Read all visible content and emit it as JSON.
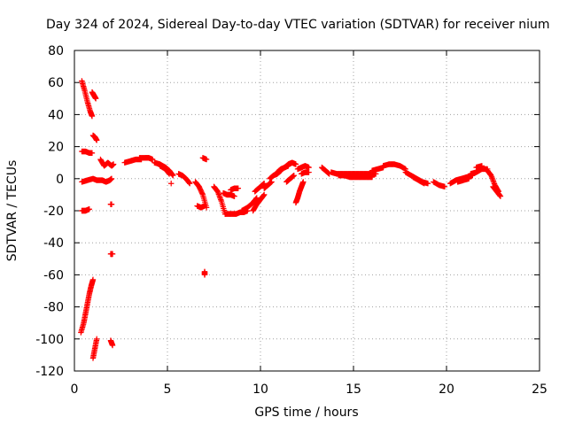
{
  "chart_data": {
    "type": "scatter",
    "title": "Day 324 of 2024, Sidereal Day-to-day VTEC variation (SDTVAR) for receiver nium",
    "xlabel": "GPS time / hours",
    "ylabel": "SDTVAR / TECUs",
    "xlim": [
      0,
      25
    ],
    "ylim": [
      -120,
      80
    ],
    "xticks": [
      0,
      5,
      10,
      15,
      20,
      25
    ],
    "yticks": [
      -120,
      -100,
      -80,
      -60,
      -40,
      -20,
      0,
      20,
      40,
      60,
      80
    ],
    "grid": true,
    "marker": "+",
    "color": "#ff0000",
    "tracks": [
      {
        "x": [
          0.4,
          0.55,
          0.7,
          0.85,
          0.95
        ],
        "y": [
          61,
          55,
          48,
          42,
          39
        ]
      },
      {
        "x": [
          0.95,
          1.05,
          1.15
        ],
        "y": [
          54,
          52,
          50
        ]
      },
      {
        "x": [
          1.0,
          1.1,
          1.2
        ],
        "y": [
          27,
          26,
          24
        ]
      },
      {
        "x": [
          0.4,
          0.6,
          0.8,
          0.95
        ],
        "y": [
          17,
          17,
          16,
          16
        ]
      },
      {
        "x": [
          0.4,
          0.7,
          1.0,
          1.2,
          1.5,
          1.7,
          1.9,
          2.0
        ],
        "y": [
          -2,
          -1,
          0,
          -1,
          -1,
          -2,
          -1,
          0
        ]
      },
      {
        "x": [
          1.4,
          1.6,
          1.8,
          2.0,
          2.1
        ],
        "y": [
          12,
          8,
          10,
          8,
          9
        ]
      },
      {
        "x": [
          0.4,
          0.6,
          0.8
        ],
        "y": [
          -20,
          -20,
          -19
        ]
      },
      {
        "x": [
          1.95,
          2.0
        ],
        "y": [
          -16,
          -16
        ]
      },
      {
        "x": [
          0.35,
          0.5,
          0.6,
          0.7,
          0.8,
          0.9,
          1.0
        ],
        "y": [
          -96,
          -90,
          -84,
          -78,
          -72,
          -67,
          -63
        ]
      },
      {
        "x": [
          1.0,
          1.1,
          1.2
        ],
        "y": [
          -112,
          -106,
          -100
        ]
      },
      {
        "x": [
          1.95,
          2.05
        ],
        "y": [
          -101,
          -104
        ]
      },
      {
        "x": [
          1.95,
          2.05
        ],
        "y": [
          -47,
          -47
        ]
      },
      {
        "x": [
          2.7,
          3.0,
          3.3,
          3.6
        ],
        "y": [
          10,
          11,
          12,
          12
        ]
      },
      {
        "x": [
          3.5,
          3.8,
          4.0,
          4.2
        ],
        "y": [
          13,
          13,
          13,
          12
        ]
      },
      {
        "x": [
          4.3,
          4.6,
          4.9,
          5.1,
          5.3
        ],
        "y": [
          10,
          9,
          7,
          5,
          2
        ]
      },
      {
        "x": [
          4.6,
          4.9,
          5.1
        ],
        "y": [
          8,
          6,
          3
        ]
      },
      {
        "x": [
          5.2
        ],
        "y": [
          -3
        ]
      },
      {
        "x": [
          5.6,
          5.8,
          6.0,
          6.2
        ],
        "y": [
          3,
          2,
          0,
          -3
        ]
      },
      {
        "x": [
          6.5,
          6.7,
          6.9,
          7.1
        ],
        "y": [
          -2,
          -5,
          -10,
          -18
        ]
      },
      {
        "x": [
          6.6,
          6.8,
          7.0
        ],
        "y": [
          -17,
          -18,
          -17
        ]
      },
      {
        "x": [
          7.0,
          7.0
        ],
        "y": [
          -58,
          -60
        ]
      },
      {
        "x": [
          6.9,
          7.1
        ],
        "y": [
          13,
          12
        ]
      },
      {
        "x": [
          7.5,
          7.7,
          7.9,
          8.1
        ],
        "y": [
          -5,
          -8,
          -14,
          -22
        ]
      },
      {
        "x": [
          8.0,
          8.2,
          8.4,
          8.6
        ],
        "y": [
          -9,
          -10,
          -10,
          -11
        ]
      },
      {
        "x": [
          8.1,
          8.4,
          8.7,
          8.9,
          9.1,
          9.3
        ],
        "y": [
          -22,
          -22,
          -22,
          -21,
          -21,
          -20
        ]
      },
      {
        "x": [
          8.4,
          8.6,
          8.8
        ],
        "y": [
          -7,
          -6,
          -6
        ]
      },
      {
        "x": [
          9.0,
          9.3,
          9.6,
          9.8
        ],
        "y": [
          -20,
          -18,
          -15,
          -12
        ]
      },
      {
        "x": [
          9.6,
          9.8,
          10.0,
          10.2
        ],
        "y": [
          -20,
          -16,
          -13,
          -10
        ]
      },
      {
        "x": [
          9.7,
          10.0,
          10.2
        ],
        "y": [
          -8,
          -5,
          -3
        ]
      },
      {
        "x": [
          10.2,
          10.4,
          10.6
        ],
        "y": [
          -6,
          -4,
          -2
        ]
      },
      {
        "x": [
          10.5,
          10.7,
          10.9,
          11.1
        ],
        "y": [
          0,
          2,
          3,
          5
        ]
      },
      {
        "x": [
          10.9,
          11.1,
          11.3,
          11.5
        ],
        "y": [
          4,
          6,
          7,
          8
        ]
      },
      {
        "x": [
          11.3,
          11.5,
          11.7,
          11.9
        ],
        "y": [
          7,
          9,
          10,
          9
        ]
      },
      {
        "x": [
          11.4,
          11.6,
          11.8
        ],
        "y": [
          -2,
          0,
          2
        ]
      },
      {
        "x": [
          11.9,
          12.0,
          12.1,
          12.2,
          12.3
        ],
        "y": [
          -15,
          -12,
          -8,
          -5,
          -2
        ]
      },
      {
        "x": [
          12.0,
          12.2,
          12.4,
          12.6
        ],
        "y": [
          6,
          7,
          8,
          7
        ]
      },
      {
        "x": [
          12.2,
          12.4,
          12.6
        ],
        "y": [
          3,
          4,
          4
        ]
      },
      {
        "x": [
          13.3,
          13.5,
          13.7
        ],
        "y": [
          7,
          5,
          3
        ]
      },
      {
        "x": [
          13.8,
          14.1,
          14.4,
          14.7,
          15.0,
          15.3,
          15.6,
          15.9,
          16.2
        ],
        "y": [
          4,
          3,
          3,
          3,
          3,
          3,
          3,
          3,
          3
        ]
      },
      {
        "x": [
          14.2,
          14.5,
          14.8,
          15.1,
          15.4,
          15.7,
          16.0
        ],
        "y": [
          2,
          2,
          1,
          1,
          1,
          1,
          1
        ]
      },
      {
        "x": [
          16.0,
          16.3,
          16.6
        ],
        "y": [
          5,
          6,
          7
        ]
      },
      {
        "x": [
          16.6,
          16.9,
          17.2,
          17.5,
          17.8
        ],
        "y": [
          8,
          9,
          9,
          8,
          6
        ]
      },
      {
        "x": [
          17.8,
          18.1,
          18.4,
          18.7,
          19.0
        ],
        "y": [
          4,
          2,
          0,
          -2,
          -3
        ]
      },
      {
        "x": [
          18.2,
          18.5,
          18.8
        ],
        "y": [
          1,
          -1,
          -3
        ]
      },
      {
        "x": [
          19.3,
          19.6,
          19.9
        ],
        "y": [
          -2,
          -4,
          -5
        ]
      },
      {
        "x": [
          20.2,
          20.5,
          20.8,
          21.1,
          21.4
        ],
        "y": [
          -3,
          -1,
          0,
          1,
          2
        ]
      },
      {
        "x": [
          20.6,
          20.9,
          21.2
        ],
        "y": [
          -2,
          -1,
          0
        ]
      },
      {
        "x": [
          21.3,
          21.6,
          21.9,
          22.2
        ],
        "y": [
          3,
          4,
          6,
          6
        ]
      },
      {
        "x": [
          21.6,
          21.9
        ],
        "y": [
          7,
          8
        ]
      },
      {
        "x": [
          22.2,
          22.4,
          22.6,
          22.8
        ],
        "y": [
          5,
          2,
          -4,
          -8
        ]
      },
      {
        "x": [
          22.5,
          22.7,
          22.9
        ],
        "y": [
          -5,
          -8,
          -11
        ]
      }
    ]
  }
}
